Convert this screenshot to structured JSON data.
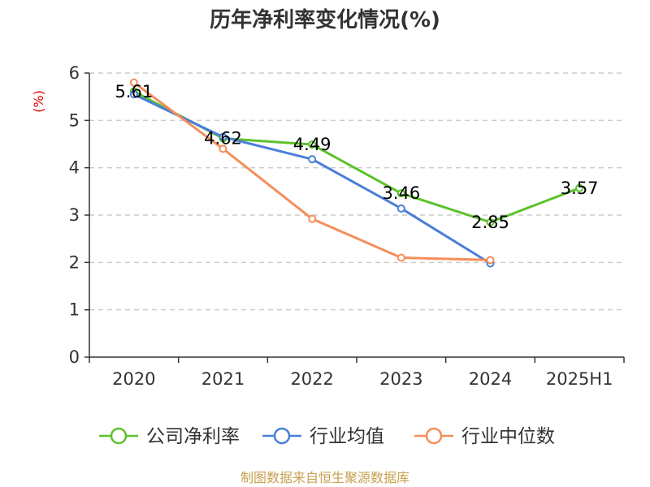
{
  "chart_data": {
    "type": "line",
    "title": "历年净利率变化情况(%)",
    "xlabel": "",
    "ylabel": "(%)",
    "categories": [
      "2020",
      "2021",
      "2022",
      "2023",
      "2024",
      "2025H1"
    ],
    "ylim": [
      0,
      6
    ],
    "yticks": [
      "0",
      "1",
      "2",
      "3",
      "4",
      "5",
      "6"
    ],
    "grid": true,
    "legend_position": "bottom",
    "series": [
      {
        "name": "公司净利率",
        "color": "#5cc22b",
        "values": [
          5.61,
          4.62,
          4.49,
          3.46,
          2.85,
          3.57
        ],
        "labels": [
          "5.61",
          "4.62",
          "4.49",
          "3.46",
          "2.85",
          "3.57"
        ]
      },
      {
        "name": "行业均值",
        "color": "#4a7fd8",
        "values": [
          5.55,
          4.65,
          4.18,
          3.14,
          1.98,
          null
        ]
      },
      {
        "name": "行业中位数",
        "color": "#f58e5a",
        "values": [
          5.8,
          4.4,
          2.92,
          2.1,
          2.05,
          null
        ]
      }
    ],
    "colors": {
      "axis": "#333333",
      "grid": "#cccccc",
      "ylabel": "#dd0000",
      "source": "#c8a050"
    },
    "source_text": "制图数据来自恒生聚源数据库"
  }
}
